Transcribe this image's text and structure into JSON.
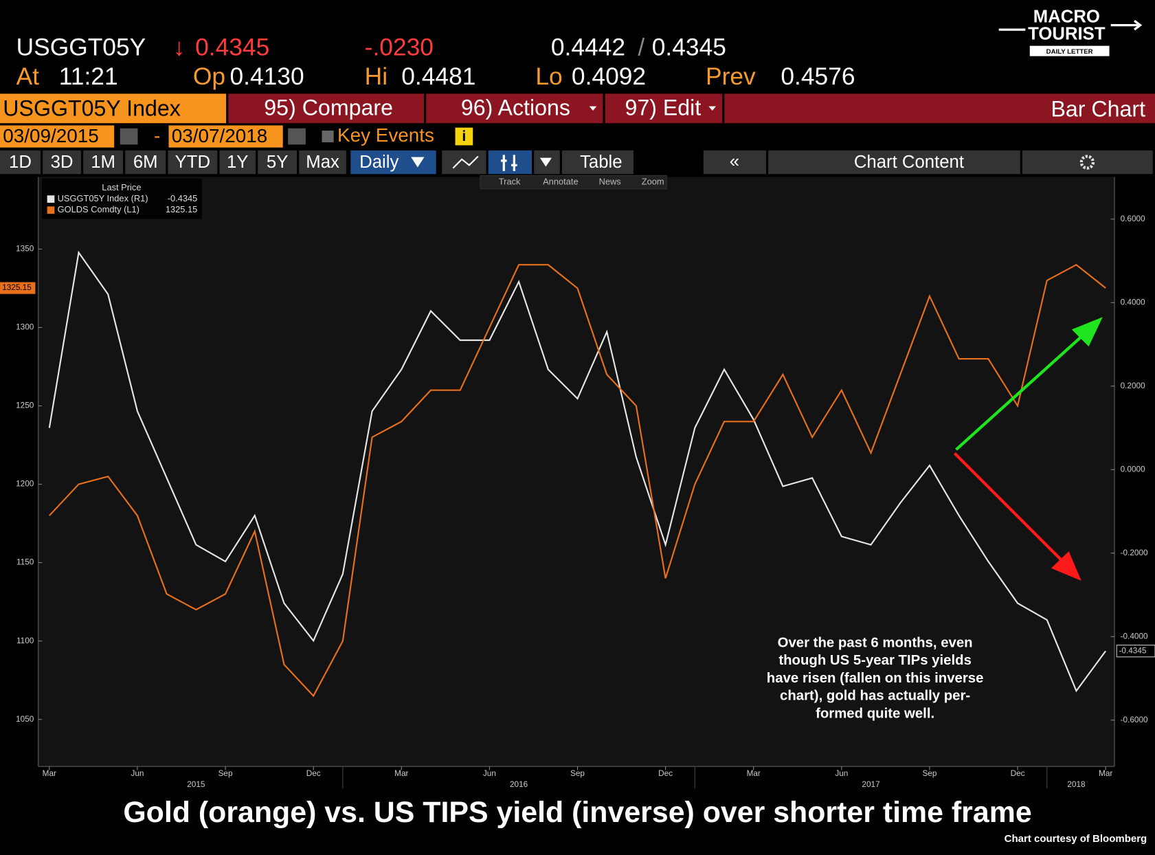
{
  "header": {
    "ticker": "USGGT05Y",
    "price": "0.4345",
    "change": "-.0230",
    "bid": "0.4442",
    "ask": "0.4345",
    "at_label": "At",
    "time": "11:21",
    "open_label": "Op",
    "open": "0.4130",
    "high_label": "Hi",
    "high": "0.4481",
    "low_label": "Lo",
    "low": "0.4092",
    "prev_label": "Prev",
    "prev": "0.4576"
  },
  "logo": {
    "line1": "MACRO",
    "line2": "TOURIST",
    "tagline": "DAILY LETTER"
  },
  "toolbar": {
    "security": "USGGT05Y Index",
    "compare": "95) Compare",
    "actions": "96) Actions",
    "edit": "97) Edit",
    "chart_kind": "Bar Chart",
    "start_date": "03/09/2015",
    "end_date": "03/07/2018",
    "key_events": "Key Events",
    "periods": [
      "1D",
      "3D",
      "1M",
      "6M",
      "YTD",
      "1Y",
      "5Y",
      "Max"
    ],
    "frequency": "Daily",
    "table": "Table",
    "chart_content": "Chart Content",
    "tools": [
      "Track",
      "Annotate",
      "News",
      "Zoom"
    ]
  },
  "chart_data": {
    "type": "line",
    "legend_title": "Last Price",
    "legend": "upper left",
    "grid": false,
    "x": [
      "2015-03",
      "2015-04",
      "2015-05",
      "2015-06",
      "2015-07",
      "2015-08",
      "2015-09",
      "2015-10",
      "2015-11",
      "2015-12",
      "2016-01",
      "2016-02",
      "2016-03",
      "2016-04",
      "2016-05",
      "2016-06",
      "2016-07",
      "2016-08",
      "2016-09",
      "2016-10",
      "2016-11",
      "2016-12",
      "2017-01",
      "2017-02",
      "2017-03",
      "2017-04",
      "2017-05",
      "2017-06",
      "2017-07",
      "2017-08",
      "2017-09",
      "2017-10",
      "2017-11",
      "2017-12",
      "2018-01",
      "2018-02",
      "2018-03"
    ],
    "xlim": [
      "2015-03",
      "2018-03"
    ],
    "xticks": [
      {
        "value": "2015-03",
        "label": "Mar"
      },
      {
        "value": "2015-06",
        "label": "Jun"
      },
      {
        "value": "2015-09",
        "label": "Sep"
      },
      {
        "value": "2015-12",
        "label": "Dec"
      },
      {
        "value": "2016-03",
        "label": "Mar"
      },
      {
        "value": "2016-06",
        "label": "Jun"
      },
      {
        "value": "2016-09",
        "label": "Sep"
      },
      {
        "value": "2016-12",
        "label": "Dec"
      },
      {
        "value": "2017-03",
        "label": "Mar"
      },
      {
        "value": "2017-06",
        "label": "Jun"
      },
      {
        "value": "2017-09",
        "label": "Sep"
      },
      {
        "value": "2017-12",
        "label": "Dec"
      },
      {
        "value": "2018-03",
        "label": "Mar"
      }
    ],
    "years": [
      "2015",
      "2016",
      "2017",
      "2018"
    ],
    "ylim": [
      1020,
      1396
    ],
    "yticks": [
      1050,
      1100,
      1150,
      1200,
      1250,
      1300,
      1350
    ],
    "y2lim": [
      -0.711,
      0.701
    ],
    "y2ticks": [
      {
        "value": 0.6,
        "label": "0.6000"
      },
      {
        "value": 0.4,
        "label": "0.4000"
      },
      {
        "value": 0.2,
        "label": "0.2000"
      },
      {
        "value": 0,
        "label": "0.0000"
      },
      {
        "value": -0.2,
        "label": "-0.2000"
      },
      {
        "value": -0.4,
        "label": "-0.4000"
      },
      {
        "value": -0.6,
        "label": "-0.6000"
      }
    ],
    "series": [
      {
        "name": "USGGT05Y Index (R1)",
        "color": "#e6e6e6",
        "axis": "y2",
        "values": [
          0.1,
          0.52,
          0.42,
          0.14,
          -0.02,
          -0.18,
          -0.22,
          -0.11,
          -0.32,
          -0.41,
          -0.25,
          0.14,
          0.24,
          0.38,
          0.31,
          0.31,
          0.45,
          0.24,
          0.17,
          0.33,
          0.03,
          -0.18,
          0.1,
          0.24,
          0.12,
          -0.04,
          -0.02,
          -0.16,
          -0.18,
          -0.08,
          0.01,
          -0.11,
          -0.22,
          -0.32,
          -0.36,
          -0.53,
          -0.4345
        ]
      },
      {
        "name": "GOLDS Comdty (L1)",
        "color": "#e8701c",
        "values": [
          1180,
          1200,
          1205,
          1180,
          1130,
          1120,
          1130,
          1170,
          1085,
          1065,
          1100,
          1230,
          1240,
          1260,
          1260,
          1300,
          1340,
          1340,
          1325,
          1270,
          1250,
          1140,
          1200,
          1240,
          1240,
          1270,
          1230,
          1260,
          1220,
          1270,
          1320,
          1280,
          1280,
          1250,
          1330,
          1340,
          1325.15
        ]
      }
    ],
    "annotation": [
      "Over the past 6 months, even",
      "though US 5-year TIPs yields",
      "have risen (fallen on this inverse",
      "chart), gold has actually per-",
      "formed quite well."
    ]
  },
  "caption": "Gold (orange) vs. US TIPS yield (inverse) over shorter time frame",
  "credit": "Chart courtesy of Bloomberg"
}
